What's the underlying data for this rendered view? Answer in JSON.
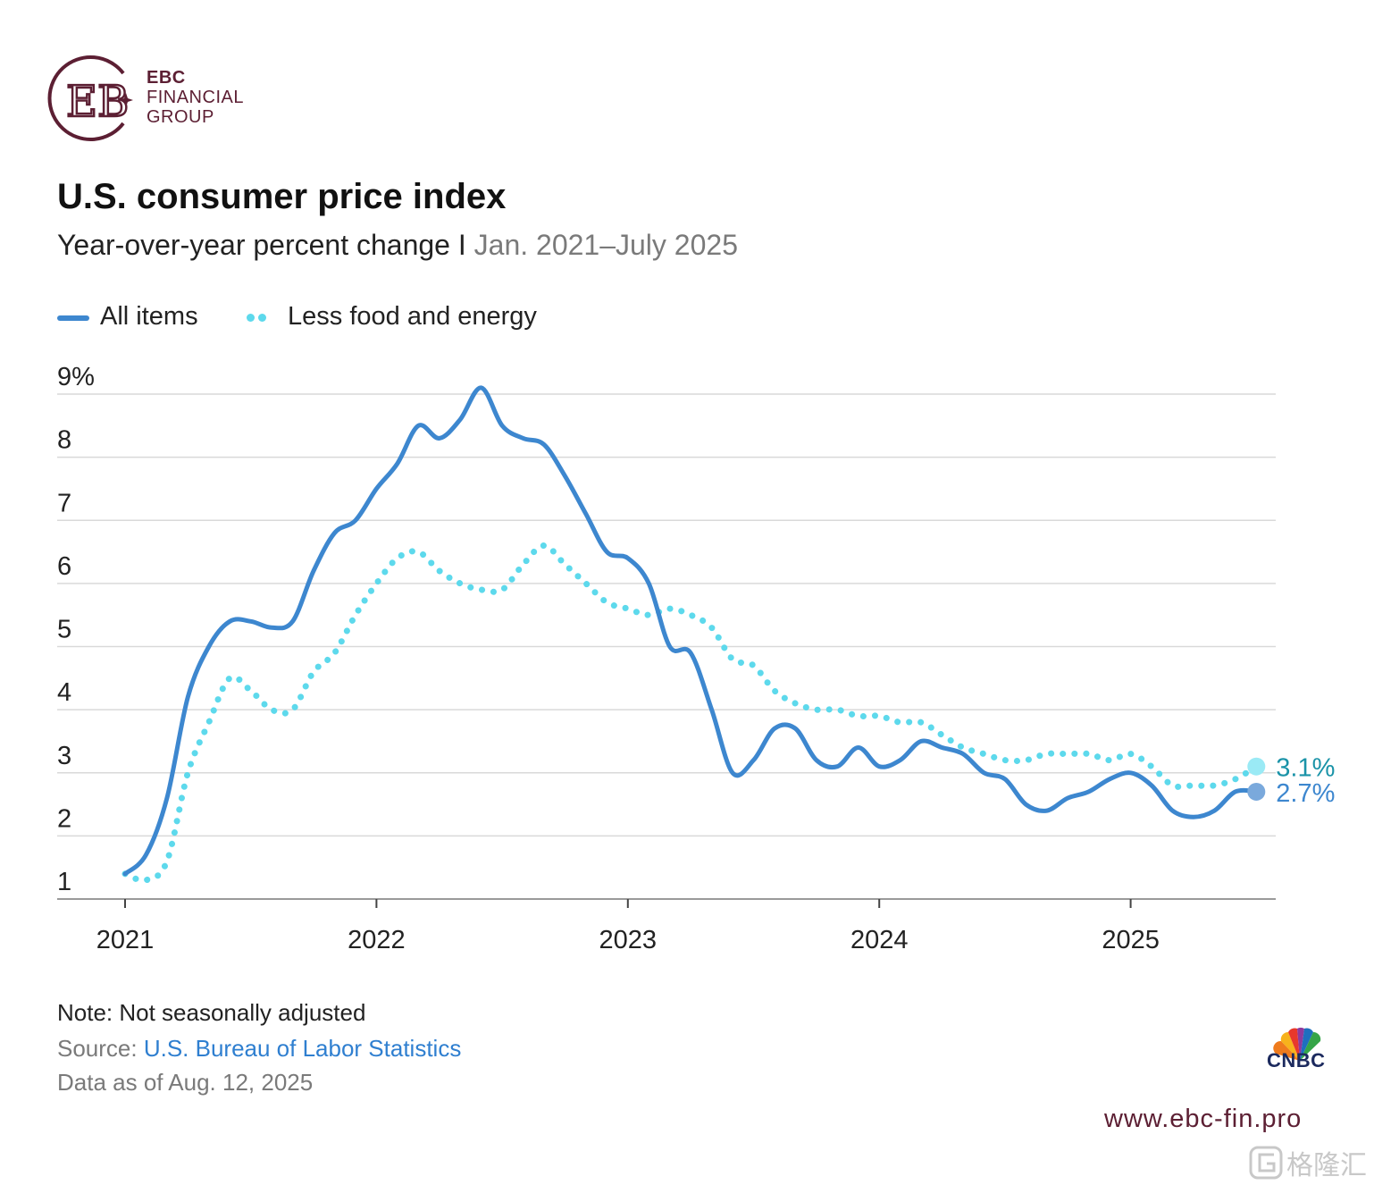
{
  "branding": {
    "ebc_line1": "EBC",
    "ebc_line2": "FINANCIAL",
    "ebc_line3": "GROUP",
    "website": "www.ebc-fin.pro",
    "cnbc": "CNBC",
    "watermark": "格隆汇",
    "ebc_color": "#5c1f33"
  },
  "header": {
    "title": "U.S. consumer price index",
    "subtitle": "Year-over-year percent change I",
    "date_range": "Jan. 2021–July 2025"
  },
  "legend": {
    "all_items": "All items",
    "core": "Less food and energy"
  },
  "footer": {
    "note": "Note: Not seasonally adjusted",
    "source_prefix": "Source: ",
    "source_link": "U.S. Bureau of Labor Statistics",
    "data_as_of": "Data as of Aug. 12, 2025"
  },
  "chart_data": {
    "type": "line",
    "title": "U.S. consumer price index",
    "subtitle": "Year-over-year percent change",
    "xlabel": "",
    "ylabel": "",
    "ylim": [
      1,
      9
    ],
    "y_ticks": [
      {
        "value": 1,
        "label": "1"
      },
      {
        "value": 2,
        "label": "2"
      },
      {
        "value": 3,
        "label": "3"
      },
      {
        "value": 4,
        "label": "4"
      },
      {
        "value": 5,
        "label": "5"
      },
      {
        "value": 6,
        "label": "6"
      },
      {
        "value": 7,
        "label": "7"
      },
      {
        "value": 8,
        "label": "8"
      },
      {
        "value": 9,
        "label": "9%"
      }
    ],
    "x_ticks": [
      {
        "month_index": 0,
        "label": "2021"
      },
      {
        "month_index": 12,
        "label": "2022"
      },
      {
        "month_index": 24,
        "label": "2023"
      },
      {
        "month_index": 36,
        "label": "2024"
      },
      {
        "month_index": 48,
        "label": "2025"
      }
    ],
    "x_start": "2021-01",
    "x_end": "2025-07",
    "grid": true,
    "legend_position": "top-left",
    "series": [
      {
        "name": "All items",
        "style": "solid",
        "color": "#3d87cf",
        "end_label": "2.7%",
        "values": [
          1.4,
          1.7,
          2.6,
          4.2,
          5.0,
          5.4,
          5.4,
          5.3,
          5.4,
          6.2,
          6.8,
          7.0,
          7.5,
          7.9,
          8.5,
          8.3,
          8.6,
          9.1,
          8.5,
          8.3,
          8.2,
          7.7,
          7.1,
          6.5,
          6.4,
          6.0,
          5.0,
          4.9,
          4.0,
          3.0,
          3.2,
          3.7,
          3.7,
          3.2,
          3.1,
          3.4,
          3.1,
          3.2,
          3.5,
          3.4,
          3.3,
          3.0,
          2.9,
          2.5,
          2.4,
          2.6,
          2.7,
          2.9,
          3.0,
          2.8,
          2.4,
          2.3,
          2.4,
          2.7,
          2.7
        ]
      },
      {
        "name": "Less food and energy",
        "style": "dotted",
        "color": "#5dd9ec",
        "end_label": "3.1%",
        "values": [
          1.4,
          1.3,
          1.6,
          3.0,
          3.8,
          4.5,
          4.3,
          4.0,
          4.0,
          4.6,
          4.9,
          5.5,
          6.0,
          6.4,
          6.5,
          6.2,
          6.0,
          5.9,
          5.9,
          6.3,
          6.6,
          6.3,
          6.0,
          5.7,
          5.6,
          5.5,
          5.6,
          5.5,
          5.3,
          4.8,
          4.7,
          4.3,
          4.1,
          4.0,
          4.0,
          3.9,
          3.9,
          3.8,
          3.8,
          3.6,
          3.4,
          3.3,
          3.2,
          3.2,
          3.3,
          3.3,
          3.3,
          3.2,
          3.3,
          3.1,
          2.8,
          2.8,
          2.8,
          2.9,
          3.1
        ]
      }
    ]
  }
}
